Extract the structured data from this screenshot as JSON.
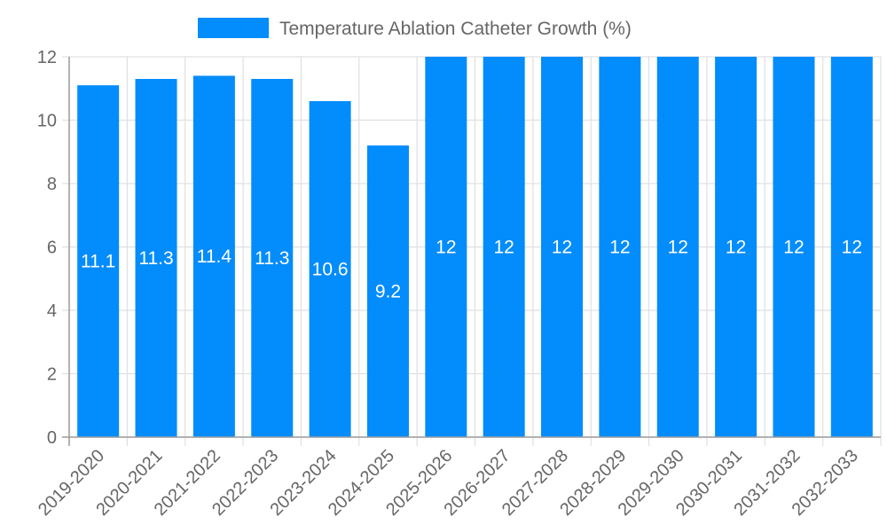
{
  "chart_data": {
    "type": "bar",
    "title": "",
    "categories": [
      "2019-2020",
      "2020-2021",
      "2021-2022",
      "2022-2023",
      "2023-2024",
      "2024-2025",
      "2025-2026",
      "2026-2027",
      "2027-2028",
      "2028-2029",
      "2029-2030",
      "2030-2031",
      "2031-2032",
      "2032-2033"
    ],
    "series": [
      {
        "name": "Temperature Ablation Catheter Growth (%)",
        "color": "#038cfb",
        "values": [
          11.1,
          11.3,
          11.4,
          11.3,
          10.6,
          9.2,
          12,
          12,
          12,
          12,
          12,
          12,
          12,
          12
        ]
      }
    ],
    "data_labels": [
      "11.1",
      "11.3",
      "11.4",
      "11.3",
      "10.6",
      "9.2",
      "12",
      "12",
      "12",
      "12",
      "12",
      "12",
      "12",
      "12"
    ],
    "xlabel": "",
    "ylabel": "",
    "ylim": [
      0,
      12
    ],
    "yticks": [
      0,
      2,
      4,
      6,
      8,
      10,
      12
    ],
    "ytick_labels": [
      "0",
      "2",
      "4",
      "6",
      "8",
      "10",
      "12"
    ],
    "grid": true,
    "legend_position": "top",
    "x_label_rotation": -45
  },
  "legend": {
    "label": "Temperature Ablation Catheter Growth (%)",
    "color": "#038cfb"
  },
  "colors": {
    "bar": "#038cfb",
    "grid": "#e0e0e0",
    "axis": "#a0a0a0",
    "text": "#666666"
  }
}
